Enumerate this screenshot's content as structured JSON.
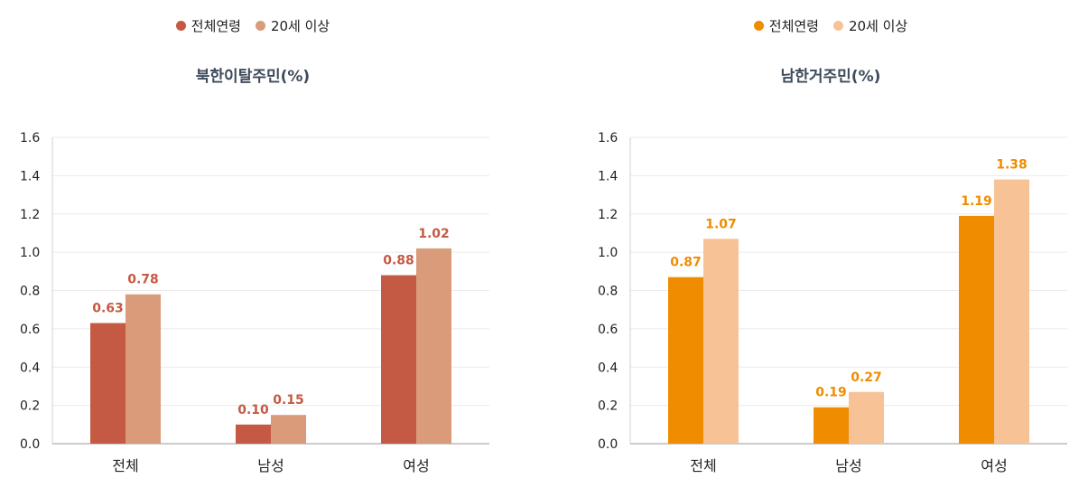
{
  "chart_data": [
    {
      "type": "bar",
      "title": "북한이탈주민(%)",
      "categories": [
        "전체",
        "남성",
        "여성"
      ],
      "series": [
        {
          "name": "전체연령",
          "values": [
            0.63,
            0.1,
            0.88
          ],
          "labels": [
            "0.63",
            "0.10",
            "0.88"
          ],
          "color": "#c55a44"
        },
        {
          "name": "20세 이상",
          "values": [
            0.78,
            0.15,
            1.02
          ],
          "labels": [
            "0.78",
            "0.15",
            "1.02"
          ],
          "color": "#d99b79"
        }
      ],
      "label_color": "#c55a44",
      "ylim": [
        0,
        1.6
      ],
      "yticks": [
        "0.0",
        "0.2",
        "0.4",
        "0.6",
        "0.8",
        "1.0",
        "1.2",
        "1.4",
        "1.6"
      ],
      "grid": true,
      "legend": "top-center"
    },
    {
      "type": "bar",
      "title": "남한거주민(%)",
      "categories": [
        "전체",
        "남성",
        "여성"
      ],
      "series": [
        {
          "name": "전체연령",
          "values": [
            0.87,
            0.19,
            1.19
          ],
          "labels": [
            "0.87",
            "0.19",
            "1.19"
          ],
          "color": "#f08c00"
        },
        {
          "name": "20세 이상",
          "values": [
            1.07,
            0.27,
            1.38
          ],
          "labels": [
            "1.07",
            "0.27",
            "1.38"
          ],
          "color": "#f7c396"
        }
      ],
      "label_color": "#f08c00",
      "ylim": [
        0,
        1.6
      ],
      "yticks": [
        "0.0",
        "0.2",
        "0.4",
        "0.6",
        "0.8",
        "1.0",
        "1.2",
        "1.4",
        "1.6"
      ],
      "grid": true,
      "legend": "top-center"
    }
  ]
}
